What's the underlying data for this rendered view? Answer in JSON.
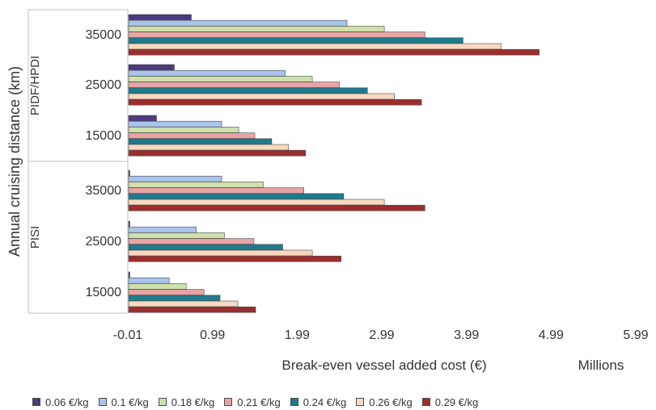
{
  "chart_data": {
    "type": "bar",
    "orientation": "horizontal",
    "ylabel": "Annual cruising distance (km)",
    "xlabel": "Break-even vessel added cost (€)",
    "xunit": "Millions",
    "xlim": [
      -0.01,
      5.99
    ],
    "xticks": [
      "-0.01",
      "0.99",
      "1.99",
      "2.99",
      "3.99",
      "4.99",
      "5.99"
    ],
    "grid": false,
    "legend_position": "bottom",
    "groups": [
      {
        "label": "PIDF/HPDI",
        "categories": [
          "35000",
          "25000",
          "15000"
        ]
      },
      {
        "label": "PISI",
        "categories": [
          "35000",
          "25000",
          "15000"
        ]
      }
    ],
    "series": [
      {
        "name": "0.06 €/kg",
        "color": "#4b3a7c",
        "values": [
          0.74,
          0.54,
          0.33,
          0.0,
          0.0,
          0.0
        ]
      },
      {
        "name": "0.1 €/kg",
        "color": "#a9c4ec",
        "values": [
          2.58,
          1.85,
          1.1,
          1.1,
          0.8,
          0.48
        ]
      },
      {
        "name": "0.18 €/kg",
        "color": "#cfe0ac",
        "values": [
          3.02,
          2.17,
          1.3,
          1.59,
          1.13,
          0.68
        ]
      },
      {
        "name": "0.21 €/kg",
        "color": "#e8a4a4",
        "values": [
          3.5,
          2.49,
          1.49,
          2.07,
          1.48,
          0.89
        ]
      },
      {
        "name": "0.24 €/kg",
        "color": "#1f7a8c",
        "values": [
          3.95,
          2.82,
          1.69,
          2.54,
          1.82,
          1.08
        ]
      },
      {
        "name": "0.26 €/kg",
        "color": "#f8d8c0",
        "values": [
          4.4,
          3.14,
          1.89,
          3.02,
          2.17,
          1.29
        ]
      },
      {
        "name": "0.29 €/kg",
        "color": "#9b2e2e",
        "values": [
          4.85,
          3.46,
          2.09,
          3.5,
          2.51,
          1.5
        ]
      }
    ]
  }
}
